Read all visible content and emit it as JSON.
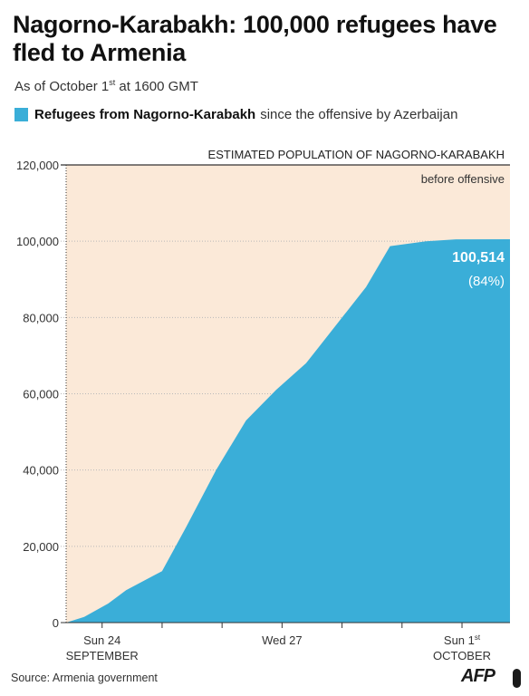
{
  "title": "Nagorno-Karabakh: 100,000 refugees have fled to Armenia",
  "subtitle": {
    "prefix": "As of October 1",
    "suffix": "st",
    "rest": " at 1600 GMT"
  },
  "legend": {
    "bold": "Refugees from Nagorno-Karabakh",
    "rest": "since the offensive by Azerbaijan",
    "color": "#3aaed8"
  },
  "source": "Source: Armenia government",
  "logo": "AFP",
  "chart_data": {
    "type": "area",
    "ylim": [
      0,
      120000
    ],
    "yticks": [
      "0",
      "20,000",
      "40,000",
      "60,000",
      "80,000",
      "100,000",
      "120,000"
    ],
    "ytick_values": [
      0,
      20000,
      40000,
      60000,
      80000,
      100000,
      120000
    ],
    "xlim": [
      0,
      7.4
    ],
    "xticks": [
      {
        "x": 0.6,
        "line1": "Sun 24",
        "line2": "SEPTEMBER"
      },
      {
        "x": 3.6,
        "line1": "Wed 27",
        "line2": ""
      },
      {
        "x": 6.6,
        "line1": "Sun 1st",
        "line2": "OCTOBER"
      }
    ],
    "tick_marks": [
      0.6,
      1.6,
      2.6,
      3.6,
      4.6,
      5.6,
      6.6
    ],
    "series": [
      {
        "values": [
          {
            "x": 0.0,
            "y": 0
          },
          {
            "x": 0.3,
            "y": 1500
          },
          {
            "x": 0.7,
            "y": 5000
          },
          {
            "x": 1.0,
            "y": 8500
          },
          {
            "x": 1.6,
            "y": 13500
          },
          {
            "x": 2.0,
            "y": 25000
          },
          {
            "x": 2.5,
            "y": 40000
          },
          {
            "x": 3.0,
            "y": 53000
          },
          {
            "x": 3.5,
            "y": 61000
          },
          {
            "x": 4.0,
            "y": 68000
          },
          {
            "x": 4.5,
            "y": 78000
          },
          {
            "x": 5.0,
            "y": 88000
          },
          {
            "x": 5.4,
            "y": 98700
          },
          {
            "x": 6.0,
            "y": 100000
          },
          {
            "x": 6.5,
            "y": 100500
          },
          {
            "x": 7.4,
            "y": 100514
          }
        ],
        "color": "#3aaed8"
      }
    ],
    "reference": {
      "value": 120000,
      "label_top": "ESTIMATED POPULATION OF NAGORNO-KARABAKH",
      "label_sub": "before offensive",
      "fill": "#fbe9d8"
    },
    "annotation": {
      "value": "100,514",
      "percent": "(84%)"
    }
  }
}
